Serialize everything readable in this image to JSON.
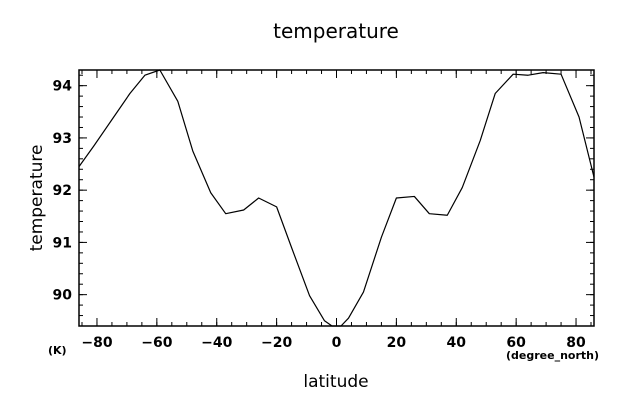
{
  "chart_data": {
    "type": "line",
    "title": "temperature",
    "xlabel": "latitude",
    "ylabel": "temperature",
    "x_unit": "(degree_north)",
    "y_unit": "(K)",
    "xlim": [
      -86,
      86
    ],
    "ylim": [
      89.4,
      94.3
    ],
    "x_ticks": [
      -80,
      -60,
      -40,
      -20,
      0,
      20,
      40,
      60,
      80
    ],
    "x_tick_labels": [
      "−80",
      "−60",
      "−40",
      "−20",
      "0",
      "20",
      "40",
      "60",
      "80"
    ],
    "y_ticks": [
      90,
      91,
      92,
      93,
      94
    ],
    "y_tick_labels": [
      "90",
      "91",
      "92",
      "93",
      "94"
    ],
    "x_minor_step": 5,
    "y_minor_step": 0.2,
    "grid": false,
    "series": [
      {
        "x": [
          -86,
          -81,
          -75,
          -69,
          -64,
          -59,
          -53,
          -48,
          -42,
          -37,
          -31,
          -26,
          -20,
          -15,
          -9,
          -4,
          -1.5,
          1.5,
          4,
          9,
          15,
          20,
          26,
          31,
          37,
          42,
          48,
          53,
          59,
          64,
          69,
          75,
          81,
          86
        ],
        "y": [
          92.45,
          92.85,
          93.35,
          93.85,
          94.2,
          94.3,
          93.7,
          92.75,
          91.95,
          91.55,
          91.62,
          91.85,
          91.68,
          90.9,
          89.98,
          89.5,
          89.35,
          89.35,
          89.55,
          90.05,
          91.1,
          91.85,
          91.88,
          91.55,
          91.52,
          92.05,
          92.95,
          93.85,
          94.22,
          94.2,
          94.25,
          94.22,
          93.4,
          92.25
        ]
      }
    ]
  }
}
